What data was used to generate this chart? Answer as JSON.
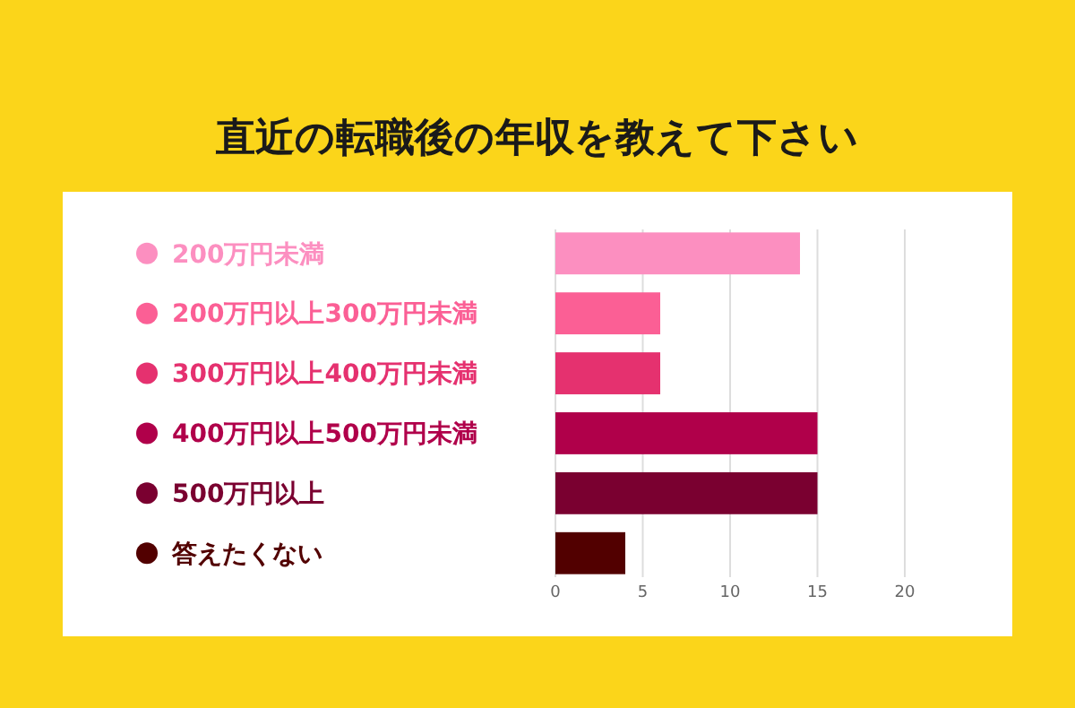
{
  "chart_data": {
    "type": "bar",
    "orientation": "horizontal",
    "title": "直近の転職後の年収を教えて下さい",
    "categories": [
      "200万円未満",
      "200万円以上300万円未満",
      "300万円以上400万円未満",
      "400万円以上500万円未満",
      "500万円以上",
      "答えたくない"
    ],
    "values": [
      14,
      6,
      6,
      15,
      15,
      4
    ],
    "colors": [
      "#fc8fc0",
      "#fb5f95",
      "#e5316f",
      "#b0004a",
      "#7a0030",
      "#520000"
    ],
    "xlim": [
      0,
      20
    ],
    "xticks": [
      0,
      5,
      10,
      15,
      20
    ],
    "grid": "x"
  }
}
